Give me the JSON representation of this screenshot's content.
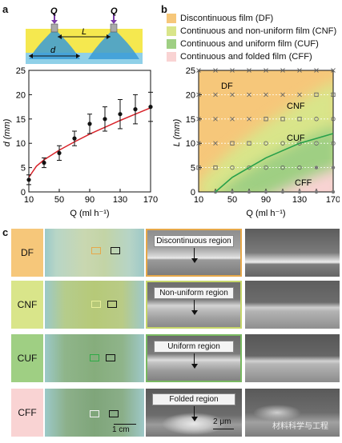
{
  "panels": {
    "a": "a",
    "b": "b",
    "c": "c"
  },
  "schematic": {
    "q_left": "Q",
    "q_right": "Q",
    "L": "L",
    "d": "d"
  },
  "charts": {
    "a": {
      "ylabel": "d (mm)",
      "xlabel": "Q (ml h⁻¹)"
    },
    "b": {
      "ylabel": "L (mm)",
      "xlabel": "Q (ml h⁻¹)",
      "region_labels": [
        "DF",
        "CNF",
        "CUF",
        "CFF"
      ]
    }
  },
  "chart_data": [
    {
      "type": "scatter",
      "panel": "a",
      "ylabel": "d (mm)",
      "xlabel": "Q (ml h⁻¹)",
      "xlim": [
        10,
        170
      ],
      "ylim": [
        0,
        25
      ],
      "xticks": [
        10,
        50,
        90,
        130,
        170
      ],
      "yticks": [
        0,
        5,
        10,
        15,
        20,
        25
      ],
      "x": [
        10,
        30,
        50,
        70,
        90,
        110,
        130,
        150,
        170
      ],
      "y": [
        2.5,
        6,
        8,
        11,
        14,
        15,
        16,
        17,
        17.5
      ],
      "yerr": [
        1,
        1,
        1.5,
        1.5,
        2,
        2.5,
        3,
        3,
        3
      ],
      "fit_curve": {
        "color": "#d8232a",
        "x": [
          10,
          20,
          30,
          50,
          70,
          90,
          110,
          130,
          150,
          170
        ],
        "y": [
          3,
          5.3,
          6.6,
          8.6,
          10.3,
          11.9,
          13.3,
          14.7,
          16,
          17.3
        ]
      },
      "colors": {
        "points": "#111111"
      }
    },
    {
      "type": "scatter",
      "panel": "b",
      "ylabel": "L (mm)",
      "xlabel": "Q (ml h⁻¹)",
      "xlim": [
        10,
        170
      ],
      "ylim": [
        0,
        25
      ],
      "xticks": [
        10,
        30,
        50,
        70,
        90,
        110,
        130,
        150,
        170
      ],
      "xticklabels": [
        "10",
        "",
        "50",
        "",
        "90",
        "",
        "130",
        "",
        "170"
      ],
      "yticks": [
        0,
        5,
        10,
        15,
        20,
        25
      ],
      "legend": [
        {
          "label": "Discontinuous film (DF)",
          "color": "#f6c77a"
        },
        {
          "label": "Continuous and non-uniform film (CNF)",
          "color": "#d9e58a"
        },
        {
          "label": "Continuous and uniform film (CUF)",
          "color": "#9fcf83"
        },
        {
          "label": "Continuous and folded film (CFF)",
          "color": "#f9d3d3"
        }
      ],
      "regions": [
        "DF",
        "CNF",
        "CUF",
        "CFF"
      ],
      "boundary": {
        "color": "#27a04a",
        "x": [
          30,
          50,
          70,
          90,
          110,
          130,
          150,
          170
        ],
        "y": [
          0,
          3,
          5,
          7,
          8.5,
          10,
          11,
          12
        ]
      },
      "markers": {
        "DF": {
          "symbol": "x",
          "points": [
            [
              10,
              25
            ],
            [
              30,
              25
            ],
            [
              50,
              25
            ],
            [
              70,
              25
            ],
            [
              90,
              25
            ],
            [
              110,
              25
            ],
            [
              130,
              25
            ],
            [
              150,
              25
            ],
            [
              170,
              25
            ],
            [
              10,
              20
            ],
            [
              30,
              20
            ],
            [
              50,
              20
            ],
            [
              70,
              20
            ],
            [
              90,
              20
            ],
            [
              110,
              20
            ],
            [
              130,
              20
            ],
            [
              10,
              15
            ],
            [
              30,
              15
            ],
            [
              50,
              15
            ],
            [
              70,
              15
            ],
            [
              10,
              10
            ],
            [
              30,
              10
            ]
          ]
        },
        "CNF": {
          "symbol": "square",
          "points": [
            [
              150,
              20
            ],
            [
              170,
              20
            ],
            [
              90,
              15
            ],
            [
              110,
              15
            ],
            [
              130,
              15
            ],
            [
              50,
              10
            ],
            [
              70,
              10
            ],
            [
              10,
              5
            ],
            [
              30,
              5
            ]
          ]
        },
        "CUF": {
          "symbol": "circle",
          "points": [
            [
              150,
              15
            ],
            [
              170,
              15
            ],
            [
              90,
              10
            ],
            [
              110,
              10
            ],
            [
              130,
              10
            ],
            [
              150,
              10
            ],
            [
              170,
              10
            ],
            [
              50,
              5
            ],
            [
              70,
              5
            ],
            [
              90,
              5
            ],
            [
              110,
              5
            ],
            [
              130,
              5
            ]
          ]
        },
        "CFF": {
          "symbol": "dot",
          "points": [
            [
              150,
              5
            ],
            [
              170,
              5
            ],
            [
              30,
              0
            ],
            [
              50,
              0
            ],
            [
              70,
              0
            ],
            [
              90,
              0
            ],
            [
              110,
              0
            ],
            [
              130,
              0
            ],
            [
              150,
              0
            ],
            [
              170,
              0
            ]
          ]
        }
      }
    }
  ],
  "rows": [
    {
      "tag": "DF",
      "tag_color": "#f6c77a",
      "frame_color": "#e6a84a",
      "sem_label": "Discontinuous region"
    },
    {
      "tag": "CNF",
      "tag_color": "#d9e58a",
      "frame_color": "#c6d66a",
      "sem_label": "Non-uniform region"
    },
    {
      "tag": "CUF",
      "tag_color": "#9fcf83",
      "frame_color": "#78b860",
      "sem_label": "Uniform region"
    },
    {
      "tag": "CFF",
      "tag_color": "#f9d3d3",
      "frame_color": "#e9a9a9",
      "sem_label": "Folded region"
    }
  ],
  "scalebars": {
    "photo": "1 cm",
    "sem": "2 μm"
  },
  "watermark": "材料科学与工程"
}
